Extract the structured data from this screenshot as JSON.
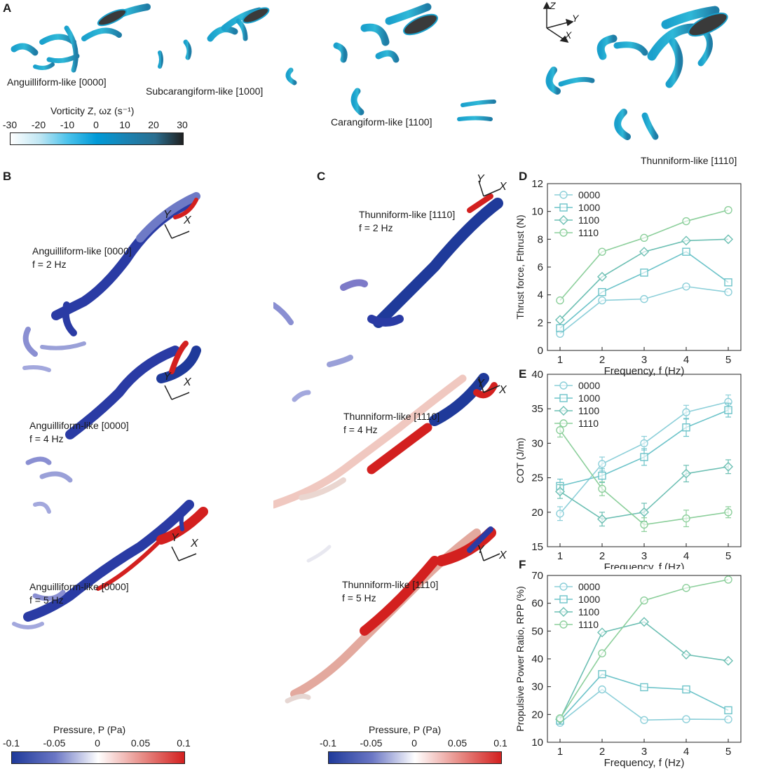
{
  "panels": {
    "a": {
      "letter": "A",
      "captions": [
        "Anguilliform-like [0000]",
        "Subcarangiform-like [1000]",
        "Carangiform-like [1100]",
        "Thunniform-like [1110]"
      ],
      "axes": {
        "z": "Z",
        "y": "Y",
        "x": "X"
      },
      "colorbar": {
        "title": "Vorticity Z, ωz (s⁻¹)",
        "ticks": [
          "-30",
          "-20",
          "-10",
          "0",
          "10",
          "20",
          "30"
        ],
        "colors": [
          "#ffffff",
          "#bfe6f3",
          "#4cc3ec",
          "#009ad7",
          "#1a83b3",
          "#2a6e8f",
          "#202020"
        ]
      }
    },
    "b": {
      "letter": "B",
      "cases": [
        {
          "caption": "Anguilliform-like [0000]",
          "freq": "f = 2 Hz"
        },
        {
          "caption": "Anguilliform-like [0000]",
          "freq": "f = 4 Hz"
        },
        {
          "caption": "Anguilliform-like [0000]",
          "freq": "f = 5 Hz"
        }
      ],
      "colorbar": {
        "title": "Pressure, P (Pa)",
        "ticks": [
          "-0.1",
          "-0.05",
          "0",
          "0.05",
          "0.1"
        ]
      }
    },
    "c": {
      "letter": "C",
      "cases": [
        {
          "caption": "Thunniform-like [1110]",
          "freq": "f = 2 Hz"
        },
        {
          "caption": "Thunniform-like [1110]",
          "freq": "f = 4 Hz"
        },
        {
          "caption": "Thunniform-like [1110]",
          "freq": "f = 5 Hz"
        }
      ],
      "colorbar": {
        "title": "Pressure, P (Pa)",
        "ticks": [
          "-0.1",
          "-0.05",
          "0",
          "0.05",
          "0.1"
        ]
      }
    },
    "axis_xy": {
      "x": "X",
      "y": "Y"
    },
    "pressure_colors": [
      "#1f3a9a",
      "#6a76c4",
      "#ffffff",
      "#e8908a",
      "#d3201f"
    ]
  },
  "chart_data": [
    {
      "id": "D",
      "type": "line",
      "x": [
        1,
        2,
        3,
        4,
        5
      ],
      "xlabel": "Frequency, f (Hz)",
      "ylabel": "Thrust force, Fthrust (N)",
      "ylim": [
        0,
        12
      ],
      "yticks": [
        0,
        2,
        4,
        6,
        8,
        10,
        12
      ],
      "legend": "top-left",
      "series": [
        {
          "name": "0000",
          "marker": "circle",
          "color": "#8ccfd9",
          "values": [
            1.2,
            3.6,
            3.7,
            4.6,
            4.2
          ]
        },
        {
          "name": "1000",
          "marker": "square",
          "color": "#6cc3c9",
          "values": [
            1.6,
            4.2,
            5.6,
            7.1,
            4.9
          ]
        },
        {
          "name": "1100",
          "marker": "diamond",
          "color": "#6cbfb3",
          "values": [
            2.2,
            5.3,
            7.1,
            7.9,
            8.0
          ]
        },
        {
          "name": "1110",
          "marker": "circle",
          "color": "#8ccf9b",
          "values": [
            3.6,
            7.1,
            8.1,
            9.3,
            10.1
          ]
        }
      ]
    },
    {
      "id": "E",
      "type": "line",
      "x": [
        1,
        2,
        3,
        4,
        5
      ],
      "xlabel": "Frequency, f (Hz)",
      "ylabel": "COT (J/m)",
      "ylim": [
        15,
        40
      ],
      "yticks": [
        15,
        20,
        25,
        30,
        35,
        40
      ],
      "legend": "top-left",
      "series": [
        {
          "name": "0000",
          "marker": "circle",
          "color": "#8ccfd9",
          "values": [
            19.8,
            27.0,
            30.0,
            34.5,
            36.0
          ],
          "err": [
            1.0,
            1.0,
            1.0,
            1.0,
            1.0
          ]
        },
        {
          "name": "1000",
          "marker": "square",
          "color": "#6cc3c9",
          "values": [
            23.8,
            25.3,
            28.0,
            32.3,
            34.8
          ],
          "err": [
            1.0,
            1.0,
            1.2,
            1.3,
            1.0
          ]
        },
        {
          "name": "1100",
          "marker": "diamond",
          "color": "#6cbfb3",
          "values": [
            23.0,
            19.0,
            20.0,
            25.6,
            26.6
          ],
          "err": [
            1.0,
            1.0,
            1.3,
            1.2,
            1.0
          ]
        },
        {
          "name": "1110",
          "marker": "circle",
          "color": "#8ccf9b",
          "values": [
            31.9,
            23.4,
            18.2,
            19.1,
            20.0
          ],
          "err": [
            1.0,
            1.0,
            1.0,
            1.2,
            0.8
          ]
        }
      ]
    },
    {
      "id": "F",
      "type": "line",
      "x": [
        1,
        2,
        3,
        4,
        5
      ],
      "xlabel": "Frequency, f (Hz)",
      "ylabel": "Propulsive Power Ratio, RPP (%)",
      "ylim": [
        10,
        70
      ],
      "yticks": [
        10,
        20,
        30,
        40,
        50,
        60,
        70
      ],
      "legend": "top-left",
      "series": [
        {
          "name": "0000",
          "marker": "circle",
          "color": "#8ccfd9",
          "values": [
            17.0,
            29.0,
            18.0,
            18.3,
            18.2
          ]
        },
        {
          "name": "1000",
          "marker": "square",
          "color": "#6cc3c9",
          "values": [
            17.8,
            34.5,
            29.8,
            29.0,
            21.5
          ]
        },
        {
          "name": "1100",
          "marker": "diamond",
          "color": "#6cbfb3",
          "values": [
            18.3,
            49.5,
            53.3,
            41.5,
            39.3
          ]
        },
        {
          "name": "1110",
          "marker": "circle",
          "color": "#8ccf9b",
          "values": [
            18.6,
            42.0,
            61.0,
            65.5,
            68.5
          ]
        }
      ]
    }
  ]
}
